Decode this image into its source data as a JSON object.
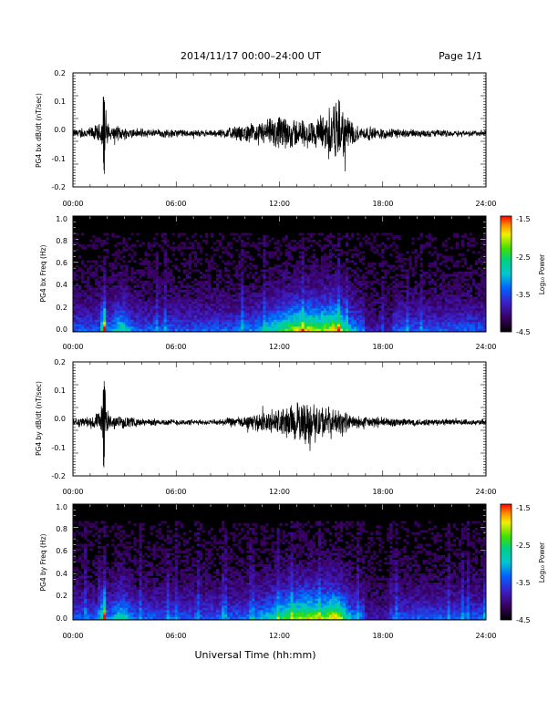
{
  "header": {
    "title": "2014/11/17  00:00–24:00 UT",
    "page": "Page 1/1"
  },
  "xaxis": {
    "label": "Universal Time (hh:mm)",
    "ticks": [
      "00:00",
      "06:00",
      "12:00",
      "18:00",
      "24:00"
    ]
  },
  "colorscale": {
    "label": "Log₁₀ Power",
    "ticks": [
      "-1.5",
      "-2.5",
      "-3.5",
      "-4.5"
    ],
    "range": [
      -4.5,
      -1.5
    ]
  },
  "chart_data": [
    {
      "type": "line",
      "ylabel": "PG4 bx dB/dt (nT/sec)",
      "xlim": [
        0,
        24
      ],
      "ylim": [
        -0.2,
        0.2
      ],
      "yticks": [
        "0.2",
        "0.1",
        "0.0",
        "-0.1",
        "-0.2"
      ],
      "activity": [
        {
          "x": 0,
          "amp": 0.015
        },
        {
          "x": 1.0,
          "amp": 0.025
        },
        {
          "x": 1.6,
          "amp": 0.04
        },
        {
          "x": 1.8,
          "amp": 0.13,
          "min": -0.15
        },
        {
          "x": 2.1,
          "amp": 0.03
        },
        {
          "x": 4.0,
          "amp": 0.02
        },
        {
          "x": 8.0,
          "amp": 0.012
        },
        {
          "x": 10.5,
          "amp": 0.04
        },
        {
          "x": 12.0,
          "amp": 0.07
        },
        {
          "x": 14.0,
          "amp": 0.05
        },
        {
          "x": 15.3,
          "amp": 0.14
        },
        {
          "x": 16.5,
          "amp": 0.03
        },
        {
          "x": 20.0,
          "amp": 0.015
        },
        {
          "x": 24.0,
          "amp": 0.012
        }
      ]
    },
    {
      "type": "heatmap",
      "ylabel": "PG4 bx Freq (Hz)",
      "xlim": [
        0,
        24
      ],
      "ylim": [
        0.0,
        1.0
      ],
      "yticks": [
        "1.0",
        "0.8",
        "0.6",
        "0.4",
        "0.2",
        "0.0"
      ]
    },
    {
      "type": "line",
      "ylabel": "PG4 by dB/dt (nT/sec)",
      "xlim": [
        0,
        24
      ],
      "ylim": [
        -0.2,
        0.2
      ],
      "yticks": [
        "0.2",
        "0.1",
        "0.0",
        "-0.1",
        "-0.2"
      ],
      "activity": [
        {
          "x": 0,
          "amp": 0.015
        },
        {
          "x": 1.0,
          "amp": 0.025
        },
        {
          "x": 1.6,
          "amp": 0.04
        },
        {
          "x": 1.8,
          "amp": 0.15,
          "min": -0.2
        },
        {
          "x": 2.1,
          "amp": 0.03
        },
        {
          "x": 4.0,
          "amp": 0.015
        },
        {
          "x": 8.0,
          "amp": 0.01
        },
        {
          "x": 10.5,
          "amp": 0.03
        },
        {
          "x": 12.0,
          "amp": 0.06
        },
        {
          "x": 13.5,
          "amp": 0.09
        },
        {
          "x": 15.0,
          "amp": 0.06
        },
        {
          "x": 16.5,
          "amp": 0.025
        },
        {
          "x": 20.0,
          "amp": 0.015
        },
        {
          "x": 24.0,
          "amp": 0.012
        }
      ]
    },
    {
      "type": "heatmap",
      "ylabel": "PG4 by Freq (Hz)",
      "xlim": [
        0,
        24
      ],
      "ylim": [
        0.0,
        1.0
      ],
      "yticks": [
        "1.0",
        "0.8",
        "0.6",
        "0.4",
        "0.2",
        "0.0"
      ]
    }
  ]
}
